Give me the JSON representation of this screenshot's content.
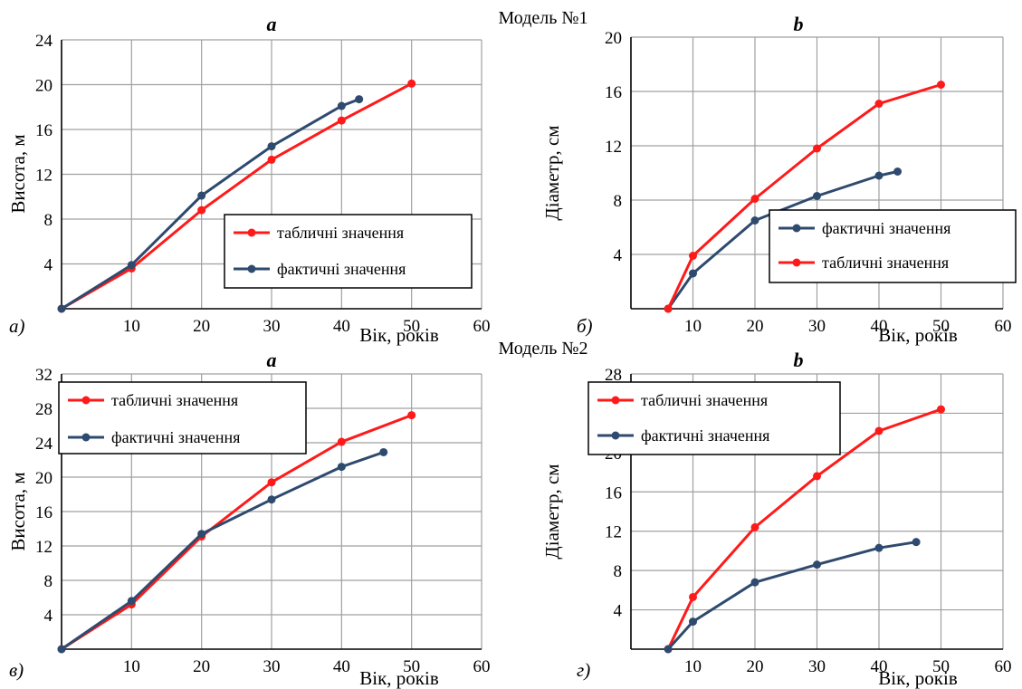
{
  "model_titles": [
    "Модель №1",
    "Модель №2"
  ],
  "colors": {
    "table": "#ff1a1a",
    "actual": "#2e4a6e",
    "grid": "#a0a0a0"
  },
  "chart_data": [
    {
      "type": "line",
      "title": "a",
      "sublabel": "а)",
      "xlabel": "Вік, років",
      "ylabel": "Висота, м",
      "xlim": [
        0,
        60
      ],
      "ylim": [
        0,
        24
      ],
      "x_ticks": [
        10,
        20,
        30,
        40,
        50,
        60
      ],
      "y_ticks": [
        4,
        8,
        12,
        16,
        20,
        24
      ],
      "legend_position": "center-right",
      "series": [
        {
          "name": "табличні значення",
          "color_key": "table",
          "x": [
            0,
            10,
            20,
            30,
            40,
            50
          ],
          "y": [
            0,
            3.6,
            8.8,
            13.3,
            16.8,
            20.1
          ]
        },
        {
          "name": "фактичні значення",
          "color_key": "actual",
          "x": [
            0,
            10,
            20,
            30,
            40,
            42.5
          ],
          "y": [
            0,
            3.9,
            10.1,
            14.5,
            18.1,
            18.7
          ]
        }
      ]
    },
    {
      "type": "line",
      "title": "b",
      "sublabel": "б)",
      "xlabel": "Вік, років",
      "ylabel": "Діаметр, см",
      "xlim": [
        0,
        60
      ],
      "ylim": [
        0,
        20
      ],
      "x_ticks": [
        10,
        20,
        30,
        40,
        50,
        60
      ],
      "y_ticks": [
        4,
        8,
        12,
        16,
        20
      ],
      "legend_position": "center-right",
      "series": [
        {
          "name": "фактичні значення",
          "color_key": "actual",
          "x": [
            6,
            10,
            20,
            30,
            40,
            43
          ],
          "y": [
            0,
            2.6,
            6.5,
            8.3,
            9.8,
            10.1
          ]
        },
        {
          "name": "табличні значення",
          "color_key": "table",
          "x": [
            6,
            10,
            20,
            30,
            40,
            50
          ],
          "y": [
            0,
            3.9,
            8.1,
            11.8,
            15.1,
            16.5
          ]
        }
      ]
    },
    {
      "type": "line",
      "title": "a",
      "sublabel": "в)",
      "xlabel": "Вік, років",
      "ylabel": "Висота, м",
      "xlim": [
        0,
        60
      ],
      "ylim": [
        0,
        32
      ],
      "x_ticks": [
        10,
        20,
        30,
        40,
        50,
        60
      ],
      "y_ticks": [
        4,
        8,
        12,
        16,
        20,
        24,
        28,
        32
      ],
      "legend_position": "top-left",
      "series": [
        {
          "name": "табличні значення",
          "color_key": "table",
          "x": [
            0,
            10,
            20,
            30,
            40,
            50
          ],
          "y": [
            0,
            5.2,
            13.1,
            19.4,
            24.1,
            27.2
          ]
        },
        {
          "name": "фактичні значення",
          "color_key": "actual",
          "x": [
            0,
            10,
            20,
            30,
            40,
            46
          ],
          "y": [
            0,
            5.6,
            13.4,
            17.4,
            21.2,
            22.9
          ]
        }
      ]
    },
    {
      "type": "line",
      "title": "b",
      "sublabel": "г)",
      "xlabel": "Вік, років",
      "ylabel": "Діаметр, см",
      "xlim": [
        0,
        60
      ],
      "ylim": [
        0,
        28
      ],
      "x_ticks": [
        10,
        20,
        30,
        40,
        50,
        60
      ],
      "y_ticks": [
        4,
        8,
        12,
        16,
        20,
        24,
        28
      ],
      "legend_position": "top-left",
      "series": [
        {
          "name": "табличні значення",
          "color_key": "table",
          "x": [
            6,
            10,
            20,
            30,
            40,
            50
          ],
          "y": [
            0,
            5.3,
            12.4,
            17.6,
            22.2,
            24.4
          ]
        },
        {
          "name": "фактичні значення",
          "color_key": "actual",
          "x": [
            6,
            10,
            20,
            30,
            40,
            46
          ],
          "y": [
            0,
            2.8,
            6.8,
            8.6,
            10.3,
            10.9
          ]
        }
      ]
    }
  ]
}
